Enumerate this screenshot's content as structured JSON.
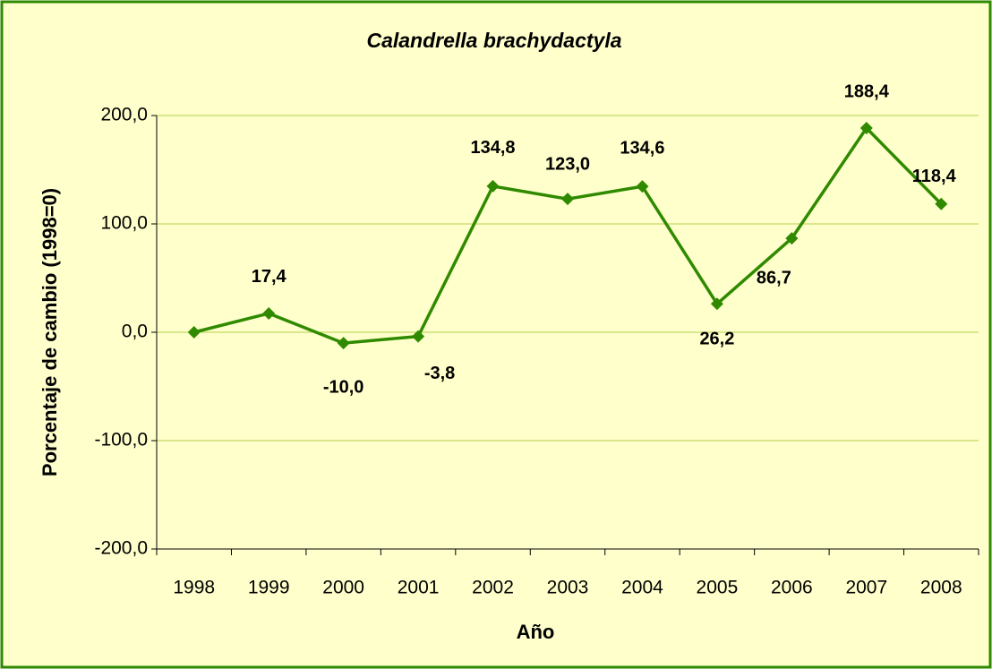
{
  "chart_data": {
    "type": "line",
    "title": "Calandrella brachydactyla",
    "x_label": "Año",
    "y_label": "Porcentaje de cambio (1998=0)",
    "categories": [
      "1998",
      "1999",
      "2000",
      "2001",
      "2002",
      "2003",
      "2004",
      "2005",
      "2006",
      "2007",
      "2008"
    ],
    "series": [
      {
        "color": "#2f8a00",
        "values": [
          0,
          17.4,
          -10.0,
          -3.8,
          134.8,
          123.0,
          134.6,
          26.2,
          86.7,
          188.4,
          118.4
        ],
        "value_labels": [
          null,
          "17,4",
          "-10,0",
          "-3,8",
          "134,8",
          "123,0",
          "134,6",
          "26,2",
          "86,7",
          "188,4",
          "118,4"
        ]
      }
    ],
    "ylim": [
      -200,
      200
    ],
    "yticks": [
      {
        "value": -200,
        "label": "-200,0"
      },
      {
        "value": -100,
        "label": "-100,0"
      },
      {
        "value": 0,
        "label": "0,0"
      },
      {
        "value": 100,
        "label": "100,0"
      },
      {
        "value": 200,
        "label": "200,0"
      }
    ],
    "grid": true,
    "grid_color": "#b5cf4a",
    "background": "#ffffcc",
    "border_color": "#2f8a00"
  }
}
